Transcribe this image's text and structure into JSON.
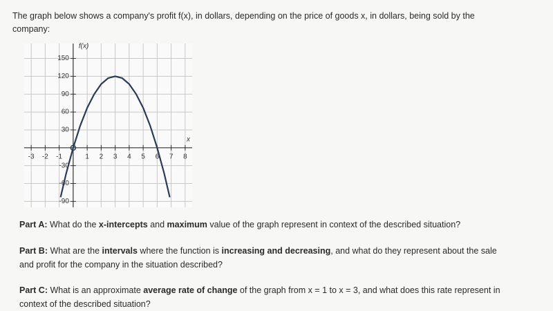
{
  "intro": "The graph below shows a company's profit f(x), in dollars, depending on the price of goods x, in dollars, being sold by the company:",
  "chart_data": {
    "type": "line",
    "y_label": "f(x)",
    "x_label": "x",
    "x": [
      -0.9,
      -0.5,
      0,
      0.5,
      1,
      1.5,
      2,
      2.5,
      3,
      3.5,
      4,
      4.5,
      5,
      5.5,
      6,
      6.5,
      6.9
    ],
    "series": [
      {
        "color": "#2b3a55",
        "values": [
          -83,
          -43,
          0,
          37,
          67,
          90,
          107,
          117,
          120,
          117,
          107,
          90,
          67,
          37,
          0,
          -43,
          -83
        ]
      }
    ],
    "xlim": [
      -3.5,
      8.5
    ],
    "ylim": [
      -100,
      175
    ],
    "xticks": [
      -3,
      -2,
      -1,
      1,
      2,
      3,
      4,
      5,
      6,
      7,
      8
    ],
    "yticks": [
      -90,
      -60,
      -30,
      30,
      60,
      90,
      120,
      150
    ],
    "grid": true
  },
  "parts": [
    {
      "label": "Part A:",
      "runs": [
        "What do the ",
        "x-intercepts",
        " and ",
        "maximum",
        " value of the graph represent in context of the described situation?"
      ]
    },
    {
      "label": "Part B:",
      "runs": [
        "What are the ",
        "intervals",
        " where the function is ",
        "increasing and decreasing",
        ", and what do they represent about the sale and profit for the company in the situation described?"
      ]
    },
    {
      "label": "Part C:",
      "runs": [
        "What is an approximate ",
        "average rate of change",
        " of the graph from x = 1 to x = 3, and what does this rate represent in context of the described situation?"
      ]
    }
  ]
}
